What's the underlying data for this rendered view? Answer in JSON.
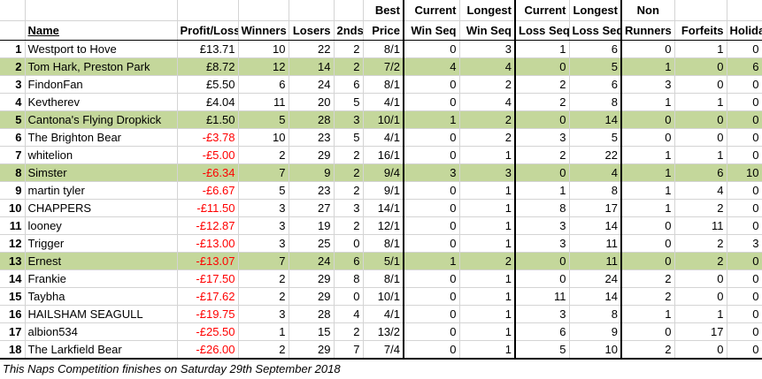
{
  "headers": {
    "row1": {
      "best": "Best",
      "current_win": "Current",
      "longest_win": "Longest",
      "current_loss": "Current",
      "longest_loss": "Longest",
      "non": "Non"
    },
    "row2": {
      "name": "Name",
      "profit": "Profit/Loss",
      "winners": "Winners",
      "losers": "Losers",
      "seconds": "2nds",
      "price": "Price",
      "win_seq": "Win Seq",
      "win_seq2": "Win Seq",
      "loss_seq": "Loss Seq",
      "loss_seq2": "Loss Seq",
      "runners": "Runners",
      "forfeits": "Forfeits",
      "holiday": "Holiday"
    }
  },
  "rows": [
    {
      "rank": "1",
      "name": "Westport to Hove",
      "profit": "£13.71",
      "winners": "10",
      "losers": "22",
      "seconds": "2",
      "price": "8/1",
      "cur_win": "0",
      "long_win": "3",
      "cur_loss": "1",
      "long_loss": "6",
      "non_runners": "0",
      "forfeits": "1",
      "holiday": "0"
    },
    {
      "rank": "2",
      "name": "Tom Hark, Preston Park",
      "profit": "£8.72",
      "winners": "12",
      "losers": "14",
      "seconds": "2",
      "price": "7/2",
      "cur_win": "4",
      "long_win": "4",
      "cur_loss": "0",
      "long_loss": "5",
      "non_runners": "1",
      "forfeits": "0",
      "holiday": "6"
    },
    {
      "rank": "3",
      "name": "FindonFan",
      "profit": "£5.50",
      "winners": "6",
      "losers": "24",
      "seconds": "6",
      "price": "8/1",
      "cur_win": "0",
      "long_win": "2",
      "cur_loss": "2",
      "long_loss": "6",
      "non_runners": "3",
      "forfeits": "0",
      "holiday": "0"
    },
    {
      "rank": "4",
      "name": "Kevtherev",
      "profit": "£4.04",
      "winners": "11",
      "losers": "20",
      "seconds": "5",
      "price": "4/1",
      "cur_win": "0",
      "long_win": "4",
      "cur_loss": "2",
      "long_loss": "8",
      "non_runners": "1",
      "forfeits": "1",
      "holiday": "0"
    },
    {
      "rank": "5",
      "name": "Cantona's Flying Dropkick",
      "profit": "£1.50",
      "winners": "5",
      "losers": "28",
      "seconds": "3",
      "price": "10/1",
      "cur_win": "1",
      "long_win": "2",
      "cur_loss": "0",
      "long_loss": "14",
      "non_runners": "0",
      "forfeits": "0",
      "holiday": "0"
    },
    {
      "rank": "6",
      "name": "The Brighton Bear",
      "profit": "-£3.78",
      "winners": "10",
      "losers": "23",
      "seconds": "5",
      "price": "4/1",
      "cur_win": "0",
      "long_win": "2",
      "cur_loss": "3",
      "long_loss": "5",
      "non_runners": "0",
      "forfeits": "0",
      "holiday": "0"
    },
    {
      "rank": "7",
      "name": "whitelion",
      "profit": "-£5.00",
      "winners": "2",
      "losers": "29",
      "seconds": "2",
      "price": "16/1",
      "cur_win": "0",
      "long_win": "1",
      "cur_loss": "2",
      "long_loss": "22",
      "non_runners": "1",
      "forfeits": "1",
      "holiday": "0"
    },
    {
      "rank": "8",
      "name": "Simster",
      "profit": "-£6.34",
      "winners": "7",
      "losers": "9",
      "seconds": "2",
      "price": "9/4",
      "cur_win": "3",
      "long_win": "3",
      "cur_loss": "0",
      "long_loss": "4",
      "non_runners": "1",
      "forfeits": "6",
      "holiday": "10"
    },
    {
      "rank": "9",
      "name": "martin tyler",
      "profit": "-£6.67",
      "winners": "5",
      "losers": "23",
      "seconds": "2",
      "price": "9/1",
      "cur_win": "0",
      "long_win": "1",
      "cur_loss": "1",
      "long_loss": "8",
      "non_runners": "1",
      "forfeits": "4",
      "holiday": "0"
    },
    {
      "rank": "10",
      "name": "CHAPPERS",
      "profit": "-£11.50",
      "winners": "3",
      "losers": "27",
      "seconds": "3",
      "price": "14/1",
      "cur_win": "0",
      "long_win": "1",
      "cur_loss": "8",
      "long_loss": "17",
      "non_runners": "1",
      "forfeits": "2",
      "holiday": "0"
    },
    {
      "rank": "11",
      "name": "looney",
      "profit": "-£12.87",
      "winners": "3",
      "losers": "19",
      "seconds": "2",
      "price": "12/1",
      "cur_win": "0",
      "long_win": "1",
      "cur_loss": "3",
      "long_loss": "14",
      "non_runners": "0",
      "forfeits": "11",
      "holiday": "0"
    },
    {
      "rank": "12",
      "name": "Trigger",
      "profit": "-£13.00",
      "winners": "3",
      "losers": "25",
      "seconds": "0",
      "price": "8/1",
      "cur_win": "0",
      "long_win": "1",
      "cur_loss": "3",
      "long_loss": "11",
      "non_runners": "0",
      "forfeits": "2",
      "holiday": "3"
    },
    {
      "rank": "13",
      "name": "Ernest",
      "profit": "-£13.07",
      "winners": "7",
      "losers": "24",
      "seconds": "6",
      "price": "5/1",
      "cur_win": "1",
      "long_win": "2",
      "cur_loss": "0",
      "long_loss": "11",
      "non_runners": "0",
      "forfeits": "2",
      "holiday": "0"
    },
    {
      "rank": "14",
      "name": "Frankie",
      "profit": "-£17.50",
      "winners": "2",
      "losers": "29",
      "seconds": "8",
      "price": "8/1",
      "cur_win": "0",
      "long_win": "1",
      "cur_loss": "0",
      "long_loss": "24",
      "non_runners": "2",
      "forfeits": "0",
      "holiday": "0"
    },
    {
      "rank": "15",
      "name": "Taybha",
      "profit": "-£17.62",
      "winners": "2",
      "losers": "29",
      "seconds": "0",
      "price": "10/1",
      "cur_win": "0",
      "long_win": "1",
      "cur_loss": "11",
      "long_loss": "14",
      "non_runners": "2",
      "forfeits": "0",
      "holiday": "0"
    },
    {
      "rank": "16",
      "name": "HAILSHAM SEAGULL",
      "profit": "-£19.75",
      "winners": "3",
      "losers": "28",
      "seconds": "4",
      "price": "4/1",
      "cur_win": "0",
      "long_win": "1",
      "cur_loss": "3",
      "long_loss": "8",
      "non_runners": "1",
      "forfeits": "1",
      "holiday": "0"
    },
    {
      "rank": "17",
      "name": "albion534",
      "profit": "-£25.50",
      "winners": "1",
      "losers": "15",
      "seconds": "2",
      "price": "13/2",
      "cur_win": "0",
      "long_win": "1",
      "cur_loss": "6",
      "long_loss": "9",
      "non_runners": "0",
      "forfeits": "17",
      "holiday": "0"
    },
    {
      "rank": "18",
      "name": "The Larkfield Bear",
      "profit": "-£26.00",
      "winners": "2",
      "losers": "29",
      "seconds": "7",
      "price": "7/4",
      "cur_win": "0",
      "long_win": "1",
      "cur_loss": "5",
      "long_loss": "10",
      "non_runners": "2",
      "forfeits": "0",
      "holiday": "0"
    }
  ],
  "highlighted_ranks": [
    "2",
    "5",
    "8",
    "13"
  ],
  "colors": {
    "highlight": "#c4d79b",
    "negative": "#ff0000",
    "gridline": "#d4d4d4"
  },
  "footer": "This Naps Competition finishes on Saturday 29th September 2018"
}
